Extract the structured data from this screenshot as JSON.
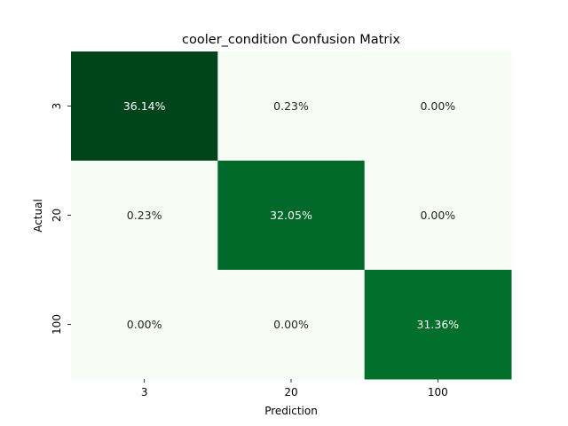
{
  "chart_data": {
    "type": "heatmap",
    "title": "cooler_condition Confusion Matrix",
    "xlabel": "Prediction",
    "ylabel": "Actual",
    "x_categories": [
      "3",
      "20",
      "100"
    ],
    "y_categories": [
      "3",
      "20",
      "100"
    ],
    "values": [
      [
        36.14,
        0.23,
        0.0
      ],
      [
        0.23,
        32.05,
        0.0
      ],
      [
        0.0,
        0.0,
        31.36
      ]
    ],
    "value_labels": [
      [
        "36.14%",
        "0.23%",
        "0.00%"
      ],
      [
        "0.23%",
        "32.05%",
        "0.00%"
      ],
      [
        "0.00%",
        "0.00%",
        "31.36%"
      ]
    ],
    "colormap": "Greens",
    "colors": {
      "low": "#f7fcf5",
      "high": "#00441b",
      "text_dark": "#262626",
      "text_light": "#ffffff"
    },
    "colorbar": false,
    "grid": false
  }
}
